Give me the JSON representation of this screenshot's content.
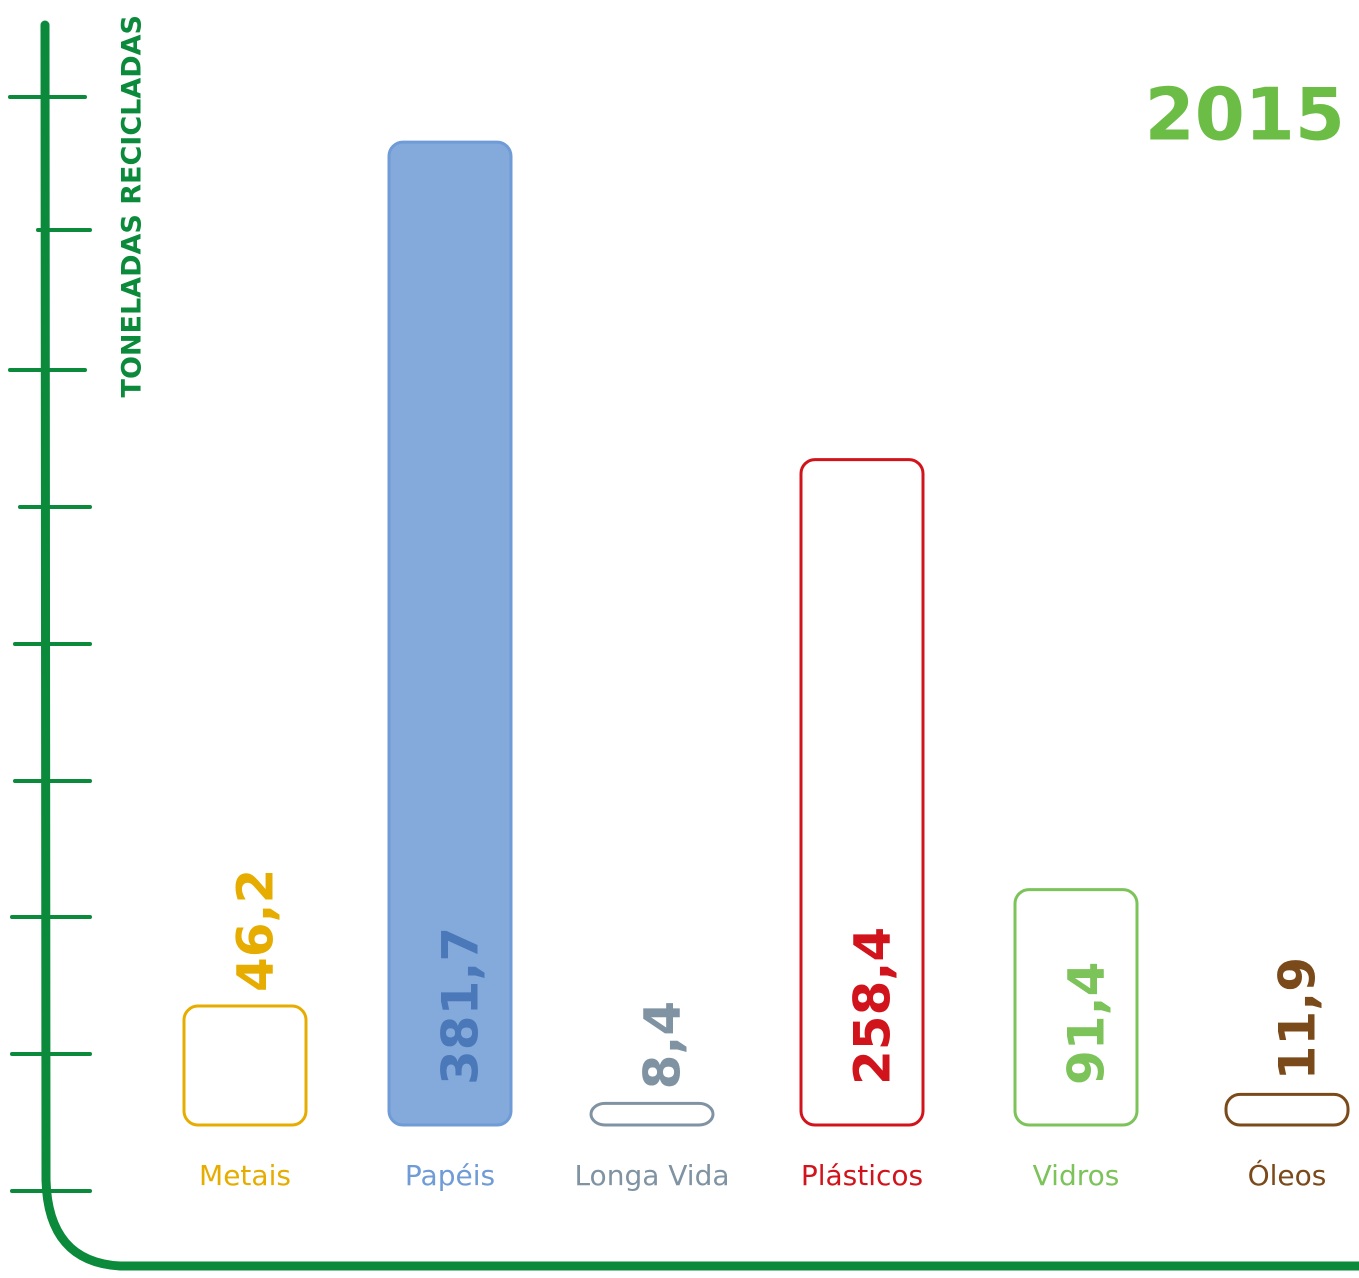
{
  "chart_data": {
    "type": "bar",
    "title": "2015",
    "y_label": "TONELADAS RECICLADAS",
    "categories": [
      "Metais",
      "Papéis",
      "Longa Vida",
      "Plásticos",
      "Vidros",
      "Óleos"
    ],
    "values": [
      46.2,
      381.7,
      8.4,
      258.4,
      91.4,
      11.9
    ],
    "value_labels": [
      "46,2",
      "381,7",
      "8,4",
      "258,4",
      "91,4",
      "11,9"
    ],
    "colors": [
      "#e6ac00",
      "#6f9bd6",
      "#7f93a3",
      "#d1141c",
      "#7cc35a",
      "#7b4a1a"
    ],
    "ylim": [
      0,
      400
    ]
  }
}
